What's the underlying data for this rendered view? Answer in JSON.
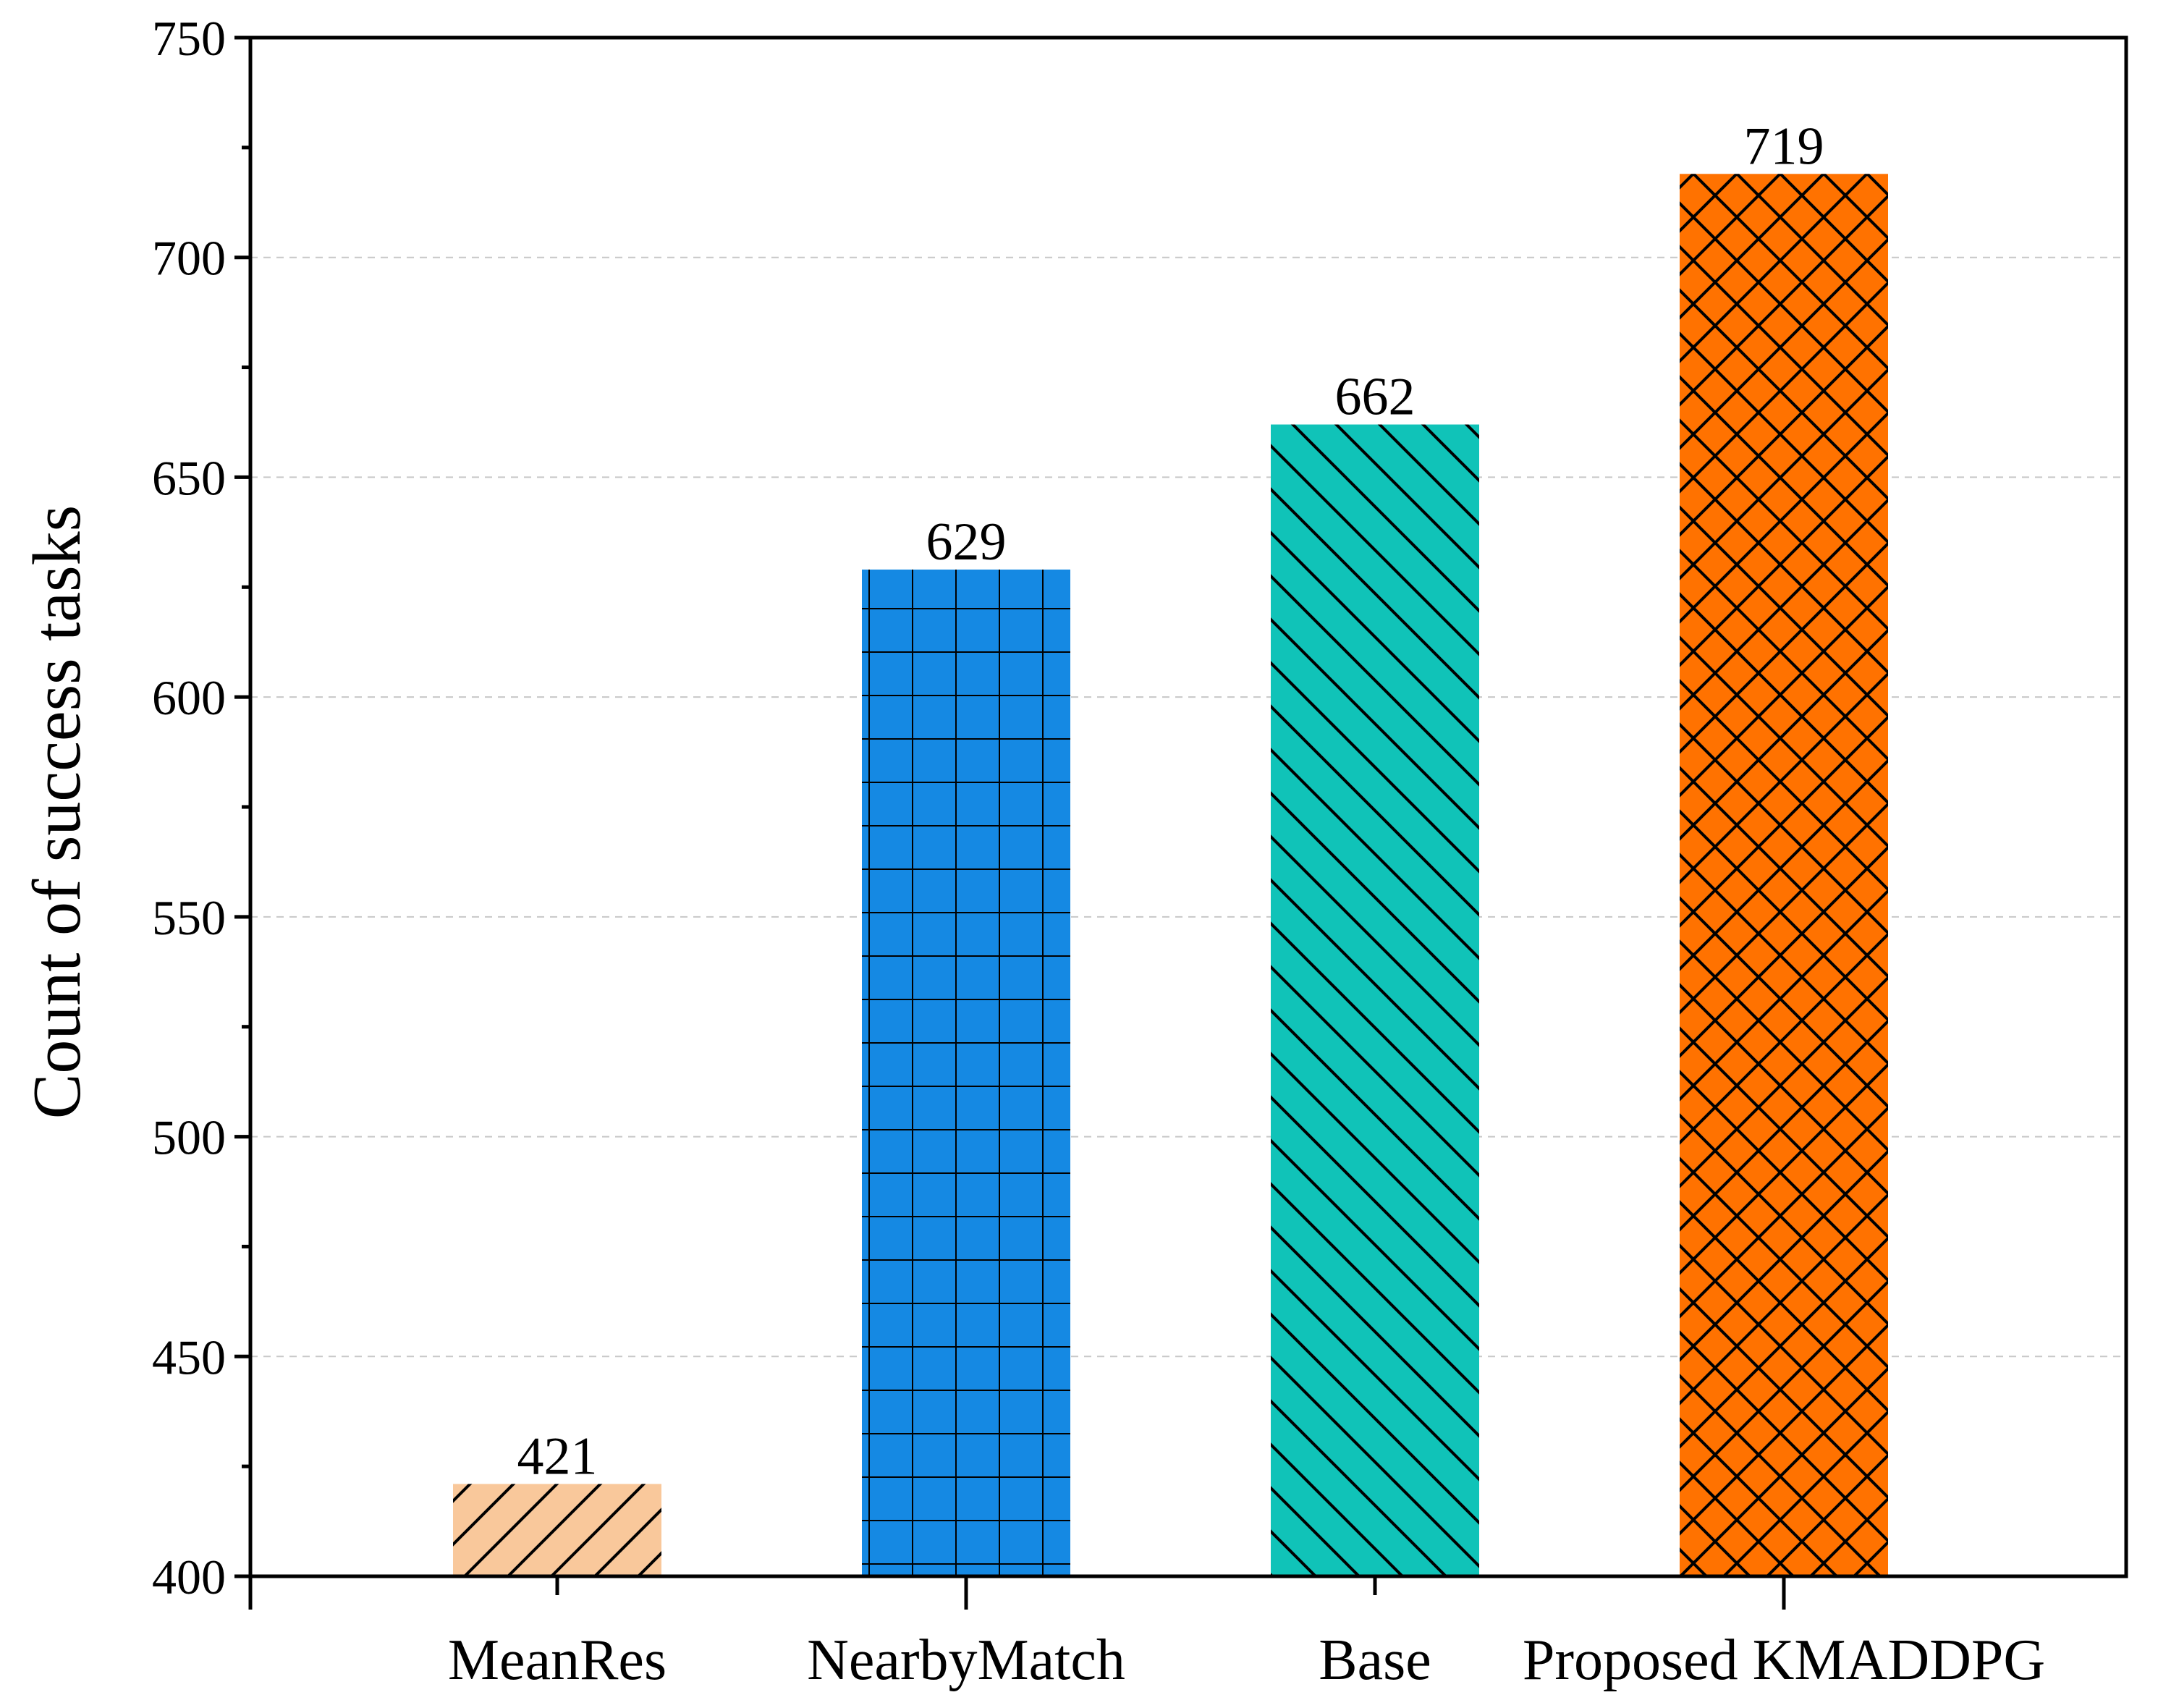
{
  "chart_data": {
    "type": "bar",
    "title": "",
    "xlabel": "",
    "ylabel": "Count of success tasks",
    "ylim": [
      400,
      750
    ],
    "yticks": [
      400,
      450,
      500,
      550,
      600,
      650,
      700,
      750
    ],
    "tick_labels": [
      "400",
      "450",
      "500",
      "550",
      "600",
      "650",
      "700",
      "750"
    ],
    "grid": true,
    "categories": [
      "MeanRes",
      "NearbyMatch",
      "Base",
      "Proposed KMADDPG"
    ],
    "values": [
      421,
      629,
      662,
      719
    ],
    "value_labels": [
      "421",
      "629",
      "662",
      "719"
    ],
    "colors": [
      "#F9C89B",
      "#1589E3",
      "#10C3B8",
      "#FF7200"
    ],
    "hatches": [
      "slash",
      "grid",
      "backslash",
      "crosshatch"
    ]
  }
}
